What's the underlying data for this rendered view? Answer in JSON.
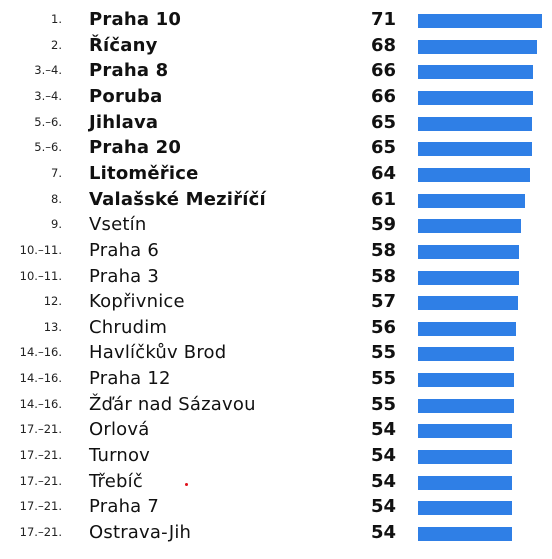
{
  "chart_data": {
    "type": "bar",
    "orientation": "horizontal",
    "bar_color": "#2f7fe6",
    "accent_dot_color": "#e0101a",
    "xlim": [
      0,
      71
    ],
    "rows": [
      {
        "rank": "1.",
        "name": "Praha 10",
        "value": 71,
        "bold": true
      },
      {
        "rank": "2.",
        "name": "Říčany",
        "value": 68,
        "bold": true
      },
      {
        "rank": "3.–4.",
        "name": "Praha 8",
        "value": 66,
        "bold": true
      },
      {
        "rank": "3.–4.",
        "name": "Poruba",
        "value": 66,
        "bold": true
      },
      {
        "rank": "5.–6.",
        "name": "Jihlava",
        "value": 65,
        "bold": true
      },
      {
        "rank": "5.–6.",
        "name": "Praha 20",
        "value": 65,
        "bold": true
      },
      {
        "rank": "7.",
        "name": "Litoměřice",
        "value": 64,
        "bold": true
      },
      {
        "rank": "8.",
        "name": "Valašské Meziříčí",
        "value": 61,
        "bold": true
      },
      {
        "rank": "9.",
        "name": "Vsetín",
        "value": 59,
        "bold": false
      },
      {
        "rank": "10.–11.",
        "name": "Praha 6",
        "value": 58,
        "bold": false
      },
      {
        "rank": "10.–11.",
        "name": "Praha 3",
        "value": 58,
        "bold": false
      },
      {
        "rank": "12.",
        "name": "Kopřivnice",
        "value": 57,
        "bold": false
      },
      {
        "rank": "13.",
        "name": "Chrudim",
        "value": 56,
        "bold": false
      },
      {
        "rank": "14.–16.",
        "name": "Havlíčkův Brod",
        "value": 55,
        "bold": false
      },
      {
        "rank": "14.–16.",
        "name": "Praha 12",
        "value": 55,
        "bold": false
      },
      {
        "rank": "14.–16.",
        "name": "Žďár nad Sázavou",
        "value": 55,
        "bold": false
      },
      {
        "rank": "17.–21.",
        "name": "Orlová",
        "value": 54,
        "bold": false
      },
      {
        "rank": "17.–21.",
        "name": "Turnov",
        "value": 54,
        "bold": false
      },
      {
        "rank": "17.–21.",
        "name": "Třebíč",
        "value": 54,
        "bold": false
      },
      {
        "rank": "17.–21.",
        "name": "Praha 7",
        "value": 54,
        "bold": false
      },
      {
        "rank": "17.–21.",
        "name": "Ostrava-Jih",
        "value": 54,
        "bold": false
      }
    ]
  }
}
